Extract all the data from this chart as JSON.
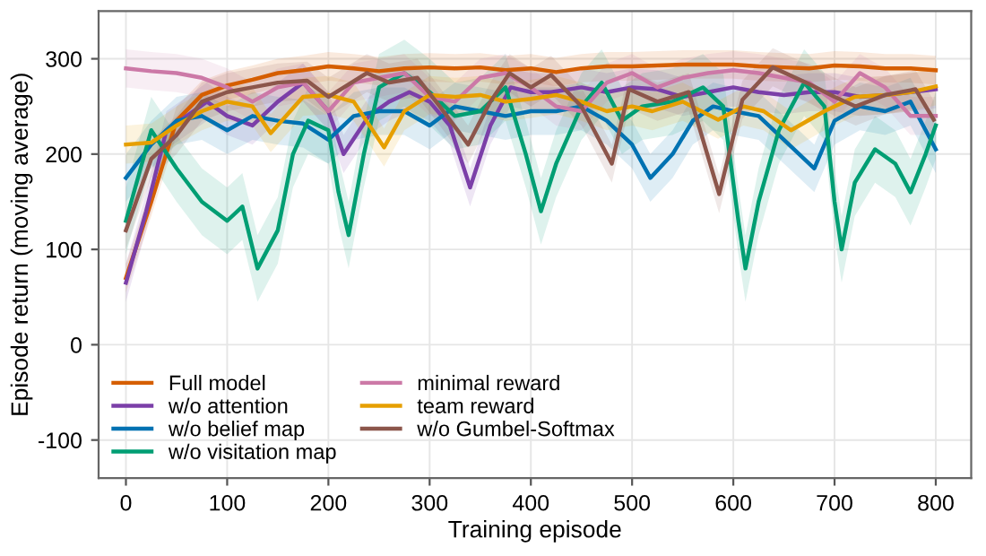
{
  "chart_data": {
    "type": "line",
    "xlabel": "Training episode",
    "ylabel": "Episode return (moving average)",
    "xlim": [
      -27,
      835
    ],
    "ylim": [
      -140,
      350
    ],
    "xticks": [
      0,
      100,
      200,
      300,
      400,
      500,
      600,
      700,
      800
    ],
    "yticks": [
      -100,
      0,
      100,
      200,
      300
    ],
    "grid": true,
    "legend": "bottom left",
    "line_style": "solid",
    "marker": "none",
    "series": [
      {
        "name": "Full model",
        "color": "#d55e00",
        "x": [
          0,
          25,
          50,
          75,
          100,
          125,
          150,
          175,
          200,
          225,
          250,
          275,
          300,
          325,
          350,
          375,
          400,
          425,
          450,
          475,
          500,
          525,
          550,
          575,
          600,
          625,
          650,
          675,
          700,
          725,
          750,
          775,
          800
        ],
        "values": [
          70,
          150,
          235,
          262,
          272,
          278,
          285,
          288,
          292,
          290,
          287,
          290,
          291,
          290,
          291,
          288,
          290,
          286,
          290,
          292,
          292,
          293,
          294,
          294,
          294,
          292,
          291,
          290,
          293,
          292,
          290,
          290,
          288
        ],
        "lower": [
          55,
          135,
          220,
          247,
          257,
          263,
          270,
          273,
          277,
          275,
          272,
          275,
          276,
          275,
          276,
          273,
          275,
          271,
          275,
          277,
          277,
          278,
          279,
          279,
          279,
          277,
          276,
          275,
          278,
          277,
          275,
          275,
          273
        ],
        "upper": [
          85,
          165,
          250,
          277,
          287,
          293,
          300,
          303,
          307,
          305,
          302,
          305,
          306,
          305,
          306,
          303,
          305,
          301,
          305,
          307,
          307,
          308,
          309,
          309,
          309,
          307,
          306,
          305,
          308,
          307,
          305,
          305,
          303
        ]
      },
      {
        "name": "w/o attention",
        "color": "#7b3fa8",
        "x": [
          0,
          20,
          40,
          60,
          80,
          100,
          125,
          150,
          175,
          200,
          215,
          240,
          260,
          280,
          300,
          320,
          340,
          360,
          380,
          400,
          420,
          450,
          475,
          500,
          525,
          550,
          575,
          600,
          625,
          650,
          675,
          700,
          725,
          750,
          775,
          800
        ],
        "values": [
          65,
          140,
          225,
          240,
          255,
          240,
          230,
          255,
          275,
          245,
          200,
          240,
          255,
          265,
          255,
          230,
          165,
          230,
          270,
          265,
          265,
          270,
          265,
          270,
          268,
          260,
          265,
          270,
          265,
          262,
          265,
          265,
          260,
          262,
          265,
          268
        ],
        "lower": [
          45,
          120,
          205,
          220,
          235,
          220,
          210,
          235,
          255,
          225,
          180,
          220,
          235,
          245,
          235,
          210,
          145,
          210,
          250,
          245,
          245,
          250,
          245,
          250,
          248,
          240,
          245,
          250,
          245,
          242,
          245,
          245,
          240,
          242,
          245,
          248
        ],
        "upper": [
          85,
          160,
          245,
          260,
          275,
          260,
          250,
          275,
          295,
          265,
          220,
          260,
          275,
          285,
          275,
          250,
          185,
          250,
          290,
          285,
          285,
          290,
          285,
          290,
          288,
          280,
          285,
          290,
          285,
          282,
          285,
          285,
          280,
          282,
          285,
          288
        ]
      },
      {
        "name": "w/o belief map",
        "color": "#0072b2",
        "x": [
          0,
          25,
          50,
          75,
          100,
          125,
          150,
          175,
          200,
          225,
          250,
          275,
          300,
          325,
          350,
          375,
          400,
          425,
          450,
          475,
          500,
          518,
          540,
          560,
          580,
          600,
          625,
          650,
          680,
          700,
          725,
          750,
          775,
          800
        ],
        "values": [
          175,
          210,
          235,
          240,
          225,
          240,
          235,
          232,
          215,
          240,
          245,
          245,
          230,
          250,
          245,
          240,
          245,
          245,
          250,
          235,
          210,
          175,
          200,
          235,
          250,
          245,
          240,
          215,
          185,
          235,
          250,
          245,
          255,
          205
        ],
        "lower": [
          150,
          185,
          210,
          215,
          200,
          215,
          210,
          207,
          190,
          215,
          220,
          220,
          205,
          225,
          220,
          215,
          220,
          220,
          225,
          210,
          185,
          150,
          175,
          210,
          225,
          220,
          215,
          190,
          160,
          210,
          225,
          220,
          230,
          180
        ],
        "upper": [
          200,
          235,
          260,
          265,
          250,
          265,
          260,
          257,
          240,
          265,
          270,
          270,
          255,
          275,
          270,
          265,
          270,
          270,
          275,
          260,
          235,
          200,
          225,
          260,
          275,
          270,
          265,
          240,
          210,
          260,
          275,
          270,
          280,
          230
        ]
      },
      {
        "name": "w/o visitation map",
        "color": "#009e73",
        "x": [
          0,
          25,
          50,
          75,
          100,
          115,
          130,
          150,
          165,
          180,
          200,
          210,
          220,
          235,
          250,
          275,
          300,
          325,
          350,
          375,
          395,
          410,
          425,
          450,
          470,
          490,
          510,
          540,
          570,
          590,
          605,
          612,
          625,
          645,
          670,
          690,
          700,
          707,
          720,
          740,
          760,
          775,
          790,
          800
        ],
        "values": [
          130,
          225,
          185,
          150,
          130,
          145,
          80,
          120,
          200,
          235,
          225,
          160,
          115,
          200,
          270,
          285,
          265,
          240,
          245,
          270,
          200,
          140,
          190,
          250,
          275,
          235,
          250,
          255,
          270,
          250,
          130,
          80,
          150,
          225,
          275,
          250,
          150,
          100,
          170,
          205,
          190,
          160,
          200,
          230
        ],
        "lower": [
          95,
          190,
          150,
          115,
          95,
          110,
          45,
          85,
          165,
          200,
          190,
          125,
          80,
          165,
          235,
          250,
          230,
          205,
          210,
          235,
          165,
          105,
          155,
          215,
          240,
          200,
          215,
          220,
          235,
          215,
          95,
          45,
          115,
          190,
          240,
          215,
          115,
          65,
          135,
          170,
          155,
          125,
          165,
          195
        ],
        "upper": [
          165,
          260,
          220,
          185,
          165,
          180,
          115,
          155,
          235,
          270,
          260,
          195,
          150,
          235,
          305,
          320,
          300,
          275,
          280,
          305,
          235,
          175,
          225,
          285,
          310,
          270,
          285,
          290,
          305,
          285,
          165,
          115,
          185,
          260,
          310,
          285,
          185,
          135,
          205,
          240,
          225,
          195,
          235,
          265
        ]
      },
      {
        "name": "minimal reward",
        "color": "#cc79a7",
        "x": [
          0,
          25,
          50,
          75,
          100,
          125,
          150,
          175,
          200,
          225,
          250,
          275,
          300,
          325,
          350,
          375,
          400,
          425,
          450,
          475,
          500,
          525,
          550,
          575,
          600,
          625,
          650,
          675,
          700,
          725,
          750,
          775,
          800
        ],
        "values": [
          290,
          287,
          285,
          280,
          270,
          255,
          270,
          275,
          245,
          275,
          280,
          285,
          260,
          255,
          280,
          285,
          270,
          250,
          245,
          275,
          285,
          270,
          280,
          285,
          288,
          285,
          280,
          275,
          255,
          285,
          270,
          240,
          240
        ],
        "lower": [
          270,
          267,
          265,
          260,
          250,
          235,
          250,
          255,
          225,
          255,
          260,
          265,
          240,
          235,
          260,
          265,
          250,
          230,
          225,
          255,
          265,
          250,
          260,
          265,
          268,
          265,
          260,
          255,
          235,
          265,
          250,
          220,
          220
        ],
        "upper": [
          310,
          307,
          305,
          300,
          290,
          275,
          290,
          295,
          265,
          295,
          300,
          305,
          280,
          275,
          300,
          305,
          290,
          270,
          265,
          295,
          305,
          290,
          300,
          305,
          308,
          305,
          300,
          295,
          275,
          305,
          290,
          260,
          260
        ]
      },
      {
        "name": "team reward",
        "color": "#e69f00",
        "x": [
          0,
          25,
          50,
          75,
          100,
          125,
          143,
          175,
          200,
          225,
          255,
          275,
          300,
          325,
          350,
          375,
          400,
          425,
          450,
          475,
          500,
          520,
          550,
          585,
          610,
          630,
          657,
          690,
          720,
          750,
          775,
          800
        ],
        "values": [
          210,
          212,
          230,
          245,
          255,
          250,
          222,
          260,
          262,
          255,
          207,
          245,
          262,
          260,
          262,
          255,
          258,
          262,
          255,
          245,
          250,
          245,
          255,
          236,
          250,
          245,
          225,
          245,
          260,
          262,
          265,
          271
        ],
        "lower": [
          190,
          192,
          210,
          225,
          235,
          230,
          202,
          240,
          242,
          235,
          187,
          225,
          242,
          240,
          242,
          235,
          238,
          242,
          235,
          225,
          230,
          225,
          235,
          216,
          230,
          225,
          205,
          225,
          240,
          242,
          245,
          251
        ],
        "upper": [
          230,
          232,
          250,
          265,
          275,
          270,
          242,
          280,
          282,
          275,
          227,
          265,
          282,
          280,
          282,
          275,
          278,
          282,
          275,
          265,
          270,
          265,
          275,
          256,
          270,
          265,
          245,
          265,
          280,
          282,
          285,
          291
        ]
      },
      {
        "name": "w/o Gumbel-Softmax",
        "color": "#8c564b",
        "x": [
          0,
          25,
          50,
          75,
          100,
          125,
          150,
          179,
          200,
          238,
          260,
          288,
          310,
          338,
          360,
          379,
          400,
          420,
          450,
          480,
          497,
          525,
          556,
          586,
          609,
          639,
          674,
          700,
          721,
          750,
          780,
          798
        ],
        "values": [
          120,
          195,
          220,
          255,
          265,
          270,
          275,
          277,
          260,
          285,
          275,
          280,
          250,
          210,
          255,
          285,
          270,
          283,
          250,
          190,
          268,
          255,
          265,
          158,
          257,
          291,
          274,
          260,
          250,
          262,
          268,
          236
        ],
        "lower": [
          100,
          175,
          200,
          235,
          245,
          250,
          255,
          257,
          240,
          265,
          255,
          260,
          230,
          190,
          235,
          265,
          250,
          263,
          230,
          170,
          248,
          235,
          245,
          138,
          237,
          271,
          254,
          240,
          230,
          242,
          248,
          216
        ],
        "upper": [
          140,
          215,
          240,
          275,
          285,
          290,
          295,
          297,
          280,
          305,
          295,
          300,
          270,
          230,
          275,
          305,
          290,
          303,
          270,
          210,
          288,
          275,
          285,
          178,
          277,
          311,
          294,
          280,
          270,
          282,
          288,
          256
        ]
      }
    ]
  }
}
